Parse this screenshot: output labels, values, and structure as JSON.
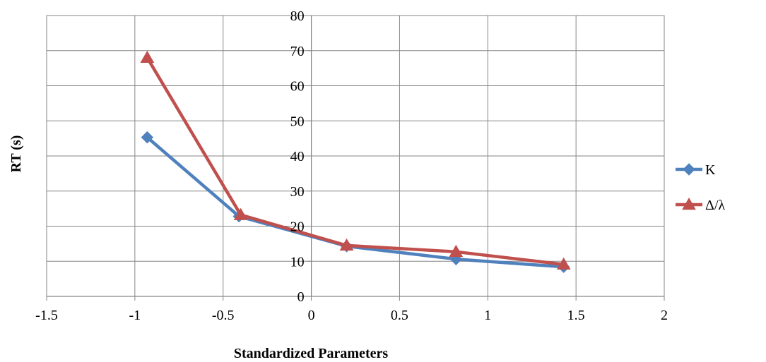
{
  "chart_data": {
    "type": "scatter",
    "title": "",
    "xlabel": "Standardized Parameters",
    "ylabel": "RT (s)",
    "xlim": [
      -1.5,
      2
    ],
    "ylim": [
      0,
      80
    ],
    "xticks": [
      -1.5,
      -1,
      -0.5,
      0,
      0.5,
      1,
      1.5,
      2
    ],
    "yticks": [
      0,
      10,
      20,
      30,
      40,
      50,
      60,
      70,
      80
    ],
    "xtick_labels": [
      "-1.5",
      "-1",
      "-0.5",
      "0",
      "0.5",
      "1",
      "1.5",
      "2"
    ],
    "ytick_labels": [
      "0",
      "10",
      "20",
      "30",
      "40",
      "50",
      "60",
      "70",
      "80"
    ],
    "grid": true,
    "legend_position": "right",
    "series": [
      {
        "name": "K",
        "color": "#4F81BD",
        "marker": "diamond",
        "x": [
          -0.93,
          -0.41,
          0.2,
          0.82,
          1.43
        ],
        "y": [
          45.3,
          22.8,
          14.3,
          10.6,
          8.4
        ]
      },
      {
        "name": "Δ/λ",
        "color": "#C0504D",
        "marker": "triangle",
        "x": [
          -0.93,
          -0.4,
          0.2,
          0.82,
          1.43
        ],
        "y": [
          68,
          23.2,
          14.5,
          12.7,
          9.1
        ]
      }
    ]
  }
}
